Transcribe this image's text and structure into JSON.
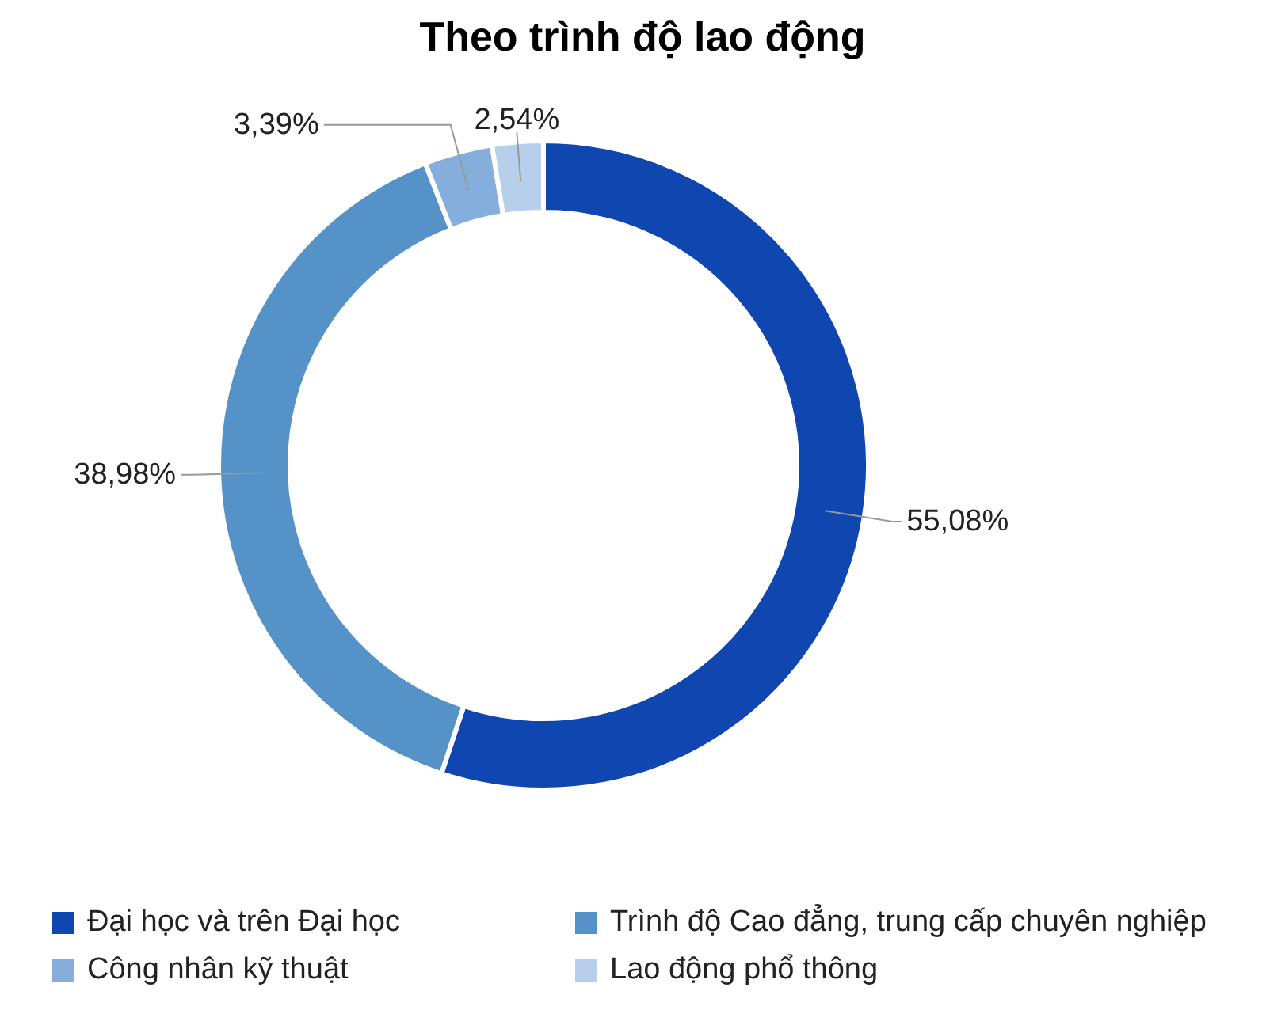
{
  "chart_data": {
    "type": "donut",
    "title": "Theo trình độ lao động",
    "categories": [
      "Đại học và trên Đại học",
      "Trình độ Cao đẳng, trung cấp chuyên nghiệp",
      "Công nhân kỹ thuật",
      "Lao động phổ thông"
    ],
    "values": [
      55.08,
      38.98,
      3.39,
      2.54
    ],
    "value_labels": [
      "55,08%",
      "38,98%",
      "3,39%",
      "2,54%"
    ],
    "colors": [
      "#1046b0",
      "#5592c8",
      "#86aedc",
      "#b8cfeb"
    ],
    "legend": "bottom"
  }
}
